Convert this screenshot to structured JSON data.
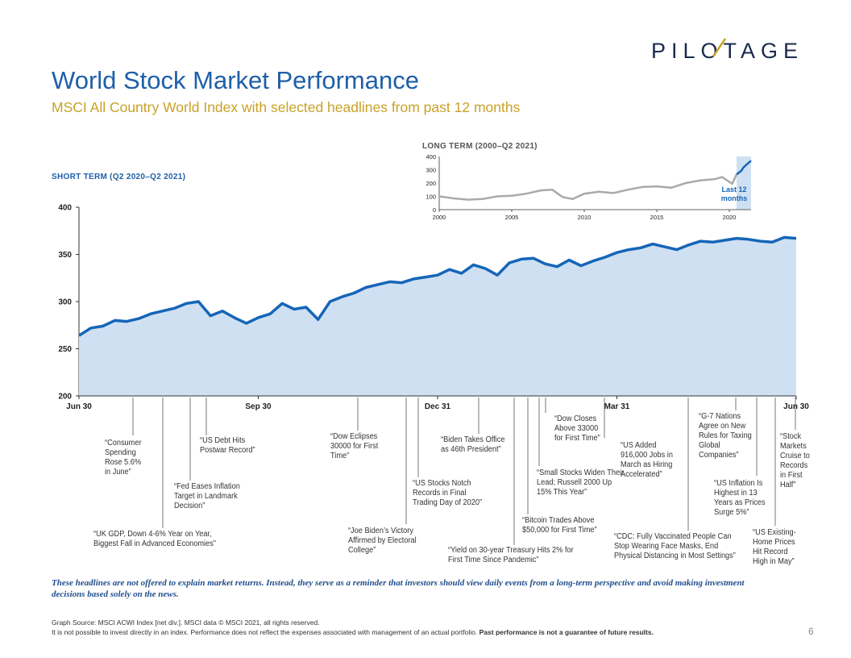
{
  "brand": {
    "logo_text": "PILOTAGE"
  },
  "header": {
    "title": "World Stock Market Performance",
    "subtitle": "MSCI All Country World Index with selected headlines from past 12 months"
  },
  "short_term_label": "SHORT TERM (Q2 2020–Q2 2021)",
  "long_term_label": "LONG TERM (2000–Q2 2021)",
  "chart_data": [
    {
      "type": "area",
      "x_tick_labels": [
        "Jun 30",
        "Sep 30",
        "Dec 31",
        "Mar 31",
        "Jun 30"
      ],
      "x_tick_months": [
        0,
        3,
        6,
        9,
        12
      ],
      "y_ticks": [
        200,
        250,
        300,
        350,
        400
      ],
      "ylim": [
        200,
        400
      ],
      "xlim": [
        0,
        12
      ],
      "grid": false,
      "series_color": "#1565b8",
      "fill_color": "#cfe0f2",
      "x_months": [
        0,
        0.2,
        0.4,
        0.6,
        0.8,
        1.0,
        1.2,
        1.4,
        1.6,
        1.8,
        2.0,
        2.2,
        2.4,
        2.6,
        2.8,
        3.0,
        3.2,
        3.4,
        3.6,
        3.8,
        4.0,
        4.2,
        4.4,
        4.6,
        4.8,
        5.0,
        5.2,
        5.4,
        5.6,
        5.8,
        6.0,
        6.2,
        6.4,
        6.6,
        6.8,
        7.0,
        7.2,
        7.4,
        7.6,
        7.8,
        8.0,
        8.2,
        8.4,
        8.6,
        8.8,
        9.0,
        9.2,
        9.4,
        9.6,
        9.8,
        10.0,
        10.2,
        10.4,
        10.6,
        10.8,
        11.0,
        11.2,
        11.4,
        11.6,
        11.8,
        12.0
      ],
      "values": [
        264,
        272,
        274,
        280,
        279,
        282,
        287,
        290,
        293,
        298,
        300,
        285,
        290,
        283,
        277,
        283,
        287,
        298,
        292,
        294,
        281,
        300,
        305,
        309,
        315,
        318,
        321,
        320,
        324,
        326,
        328,
        334,
        330,
        339,
        335,
        328,
        341,
        345,
        346,
        340,
        337,
        344,
        338,
        343,
        347,
        352,
        355,
        357,
        361,
        358,
        355,
        360,
        364,
        363,
        365,
        367,
        366,
        364,
        363,
        368,
        367
      ]
    },
    {
      "type": "line",
      "x_tick_labels": [
        "2000",
        "2005",
        "2010",
        "2015",
        "2020"
      ],
      "x_tick_years": [
        2000,
        2005,
        2010,
        2015,
        2020
      ],
      "y_ticks": [
        0,
        100,
        200,
        300,
        400
      ],
      "ylim": [
        0,
        400
      ],
      "xlim": [
        2000,
        2021.5
      ],
      "series_color": "#aaaaaa",
      "highlight_color": "#1565b8",
      "highlight_label": "Last 12 months",
      "highlight_range": [
        2020.5,
        2021.5
      ],
      "x_years": [
        2000,
        2001,
        2002,
        2003,
        2004,
        2005,
        2006,
        2007,
        2007.8,
        2008.5,
        2009.2,
        2010,
        2011,
        2012,
        2013,
        2014,
        2015,
        2016,
        2017,
        2018,
        2019,
        2019.5,
        2020.2,
        2020.5,
        2020.8,
        2021,
        2021.25,
        2021.5
      ],
      "values": [
        100,
        85,
        75,
        80,
        100,
        105,
        120,
        145,
        150,
        95,
        80,
        120,
        135,
        125,
        150,
        170,
        175,
        165,
        200,
        220,
        230,
        245,
        195,
        265,
        290,
        320,
        345,
        368
      ]
    }
  ],
  "headlines": [
    {
      "text": "“Consumer Spending Rose 5.6% in June”"
    },
    {
      "text": "“UK GDP, Down 4-6% Year on Year, Biggest Fall in Advanced Economies”"
    },
    {
      "text": "“Fed Eases Inflation Target in Landmark Decision”"
    },
    {
      "text": "“US Debt Hits Postwar Record”"
    },
    {
      "text": "“Dow Eclipses 30000 for First Time”"
    },
    {
      "text": "“Joe Biden’s Victory Affirmed by Electoral College”"
    },
    {
      "text": "“US Stocks Notch Records in Final Trading Day of 2020”"
    },
    {
      "text": "“Biden Takes Office as 46th President”"
    },
    {
      "text": "“Yield on 30-year Treasury Hits 2% for First Time Since Pandemic”"
    },
    {
      "text": "“Bitcoin Trades Above $50,000 for First Time”"
    },
    {
      "text": "“Small Stocks Widen Their Lead; Russell 2000 Up 15% This Year”"
    },
    {
      "text": "“Dow Closes Above 33000 for First Time”"
    },
    {
      "text": "“US Added 916,000 Jobs in March as Hiring Accelerated”"
    },
    {
      "text": "“CDC: Fully Vaccinated People Can Stop Wearing Face Masks, End Physical Distancing in Most Settings”"
    },
    {
      "text": "“G-7 Nations Agree on New Rules for Taxing Global Companies”"
    },
    {
      "text": "“US Inflation Is Highest in 13 Years as Prices Surge 5%”"
    },
    {
      "text": "“US Existing-Home Prices Hit Record High in May”"
    },
    {
      "text": "“Stock Markets Cruise to Records in First Half”"
    }
  ],
  "disclaimer": "These headlines are not offered to explain market returns. Instead, they serve as a reminder that investors should view daily events from a long-term perspective and avoid making investment decisions based solely on the news.",
  "footer": {
    "source": "Graph Source: MSCI ACWI Index [net div.]. MSCI data © MSCI 2021, all rights reserved.",
    "note": "It is not possible to invest directly in an index. Performance does not reflect the expenses associated with management of an actual portfolio.",
    "note_bold": "Past performance is not a guarantee of future results.",
    "page_number": "6"
  }
}
